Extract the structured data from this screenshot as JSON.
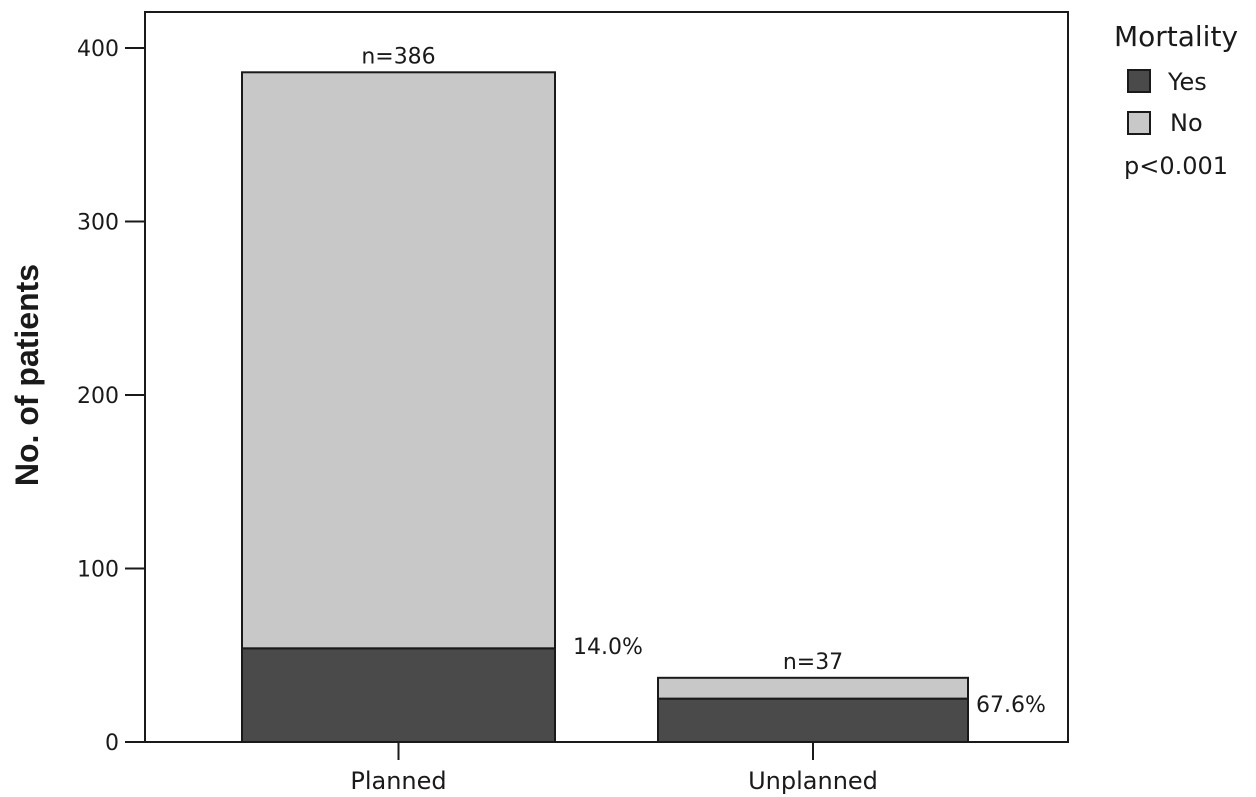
{
  "chart_data": {
    "type": "bar",
    "stacked": true,
    "categories": [
      "Planned",
      "Unplanned"
    ],
    "series": [
      {
        "name": "Yes",
        "values": [
          54,
          25
        ],
        "color": "#4a4a4a"
      },
      {
        "name": "No",
        "values": [
          332,
          12
        ],
        "color": "#c8c8c8"
      }
    ],
    "totals": [
      386,
      37
    ],
    "total_labels": [
      "n=386",
      "n=37"
    ],
    "yes_percent_labels": [
      "14.0%",
      "67.6%"
    ],
    "ylabel": "No. of patients",
    "ylim": [
      0,
      400
    ],
    "yticks": [
      0,
      100,
      200,
      300,
      400
    ],
    "grid": false,
    "legend": {
      "title": "Mortality",
      "placement": "right-top",
      "entries": [
        "Yes",
        "No"
      ],
      "note": "p<0.001"
    }
  }
}
